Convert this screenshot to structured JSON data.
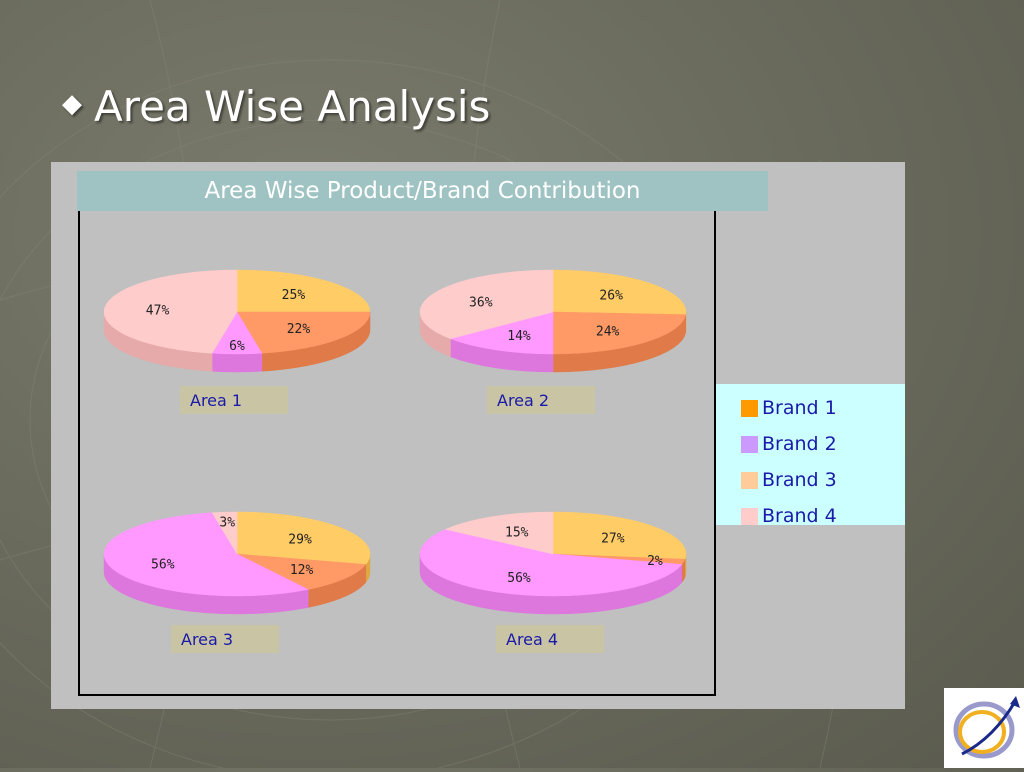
{
  "slide": {
    "title": "Area Wise Analysis",
    "bullet": "◆"
  },
  "chart_data": {
    "type": "pie",
    "title": "Area Wise Product/Brand Contribution",
    "legend_position": "right",
    "legend": [
      {
        "name": "Brand 1",
        "color": "#ff9900"
      },
      {
        "name": "Brand 2",
        "color": "#cc99ff"
      },
      {
        "name": "Brand 3",
        "color": "#ffcc99"
      },
      {
        "name": "Brand 4",
        "color": "#ffcccc"
      }
    ],
    "pies": [
      {
        "label": "Area 1",
        "slices": [
          {
            "value": 25,
            "label": "25%",
            "color": "#ffcc66",
            "side": "#e0a840"
          },
          {
            "value": 22,
            "label": "22%",
            "color": "#ff9966",
            "side": "#e07a48"
          },
          {
            "value": 6,
            "label": "6%",
            "color": "#ff99ff",
            "side": "#dd77dd"
          },
          {
            "value": 47,
            "label": "47%",
            "color": "#ffcccc",
            "side": "#e6aaaa"
          }
        ]
      },
      {
        "label": "Area 2",
        "slices": [
          {
            "value": 26,
            "label": "26%",
            "color": "#ffcc66",
            "side": "#e0a840"
          },
          {
            "value": 24,
            "label": "24%",
            "color": "#ff9966",
            "side": "#e07a48"
          },
          {
            "value": 14,
            "label": "14%",
            "color": "#ff99ff",
            "side": "#dd77dd"
          },
          {
            "value": 36,
            "label": "36%",
            "color": "#ffcccc",
            "side": "#e6aaaa"
          }
        ]
      },
      {
        "label": "Area 3",
        "slices": [
          {
            "value": 29,
            "label": "29%",
            "color": "#ffcc66",
            "side": "#e0a840"
          },
          {
            "value": 12,
            "label": "12%",
            "color": "#ff9966",
            "side": "#e07a48"
          },
          {
            "value": 56,
            "label": "56%",
            "color": "#ff99ff",
            "side": "#dd77dd"
          },
          {
            "value": 3,
            "label": "3%",
            "color": "#ffcccc",
            "side": "#e6aaaa"
          }
        ]
      },
      {
        "label": "Area 4",
        "slices": [
          {
            "value": 27,
            "label": "27%",
            "color": "#ffcc66",
            "side": "#e0a840"
          },
          {
            "value": 2,
            "label": "2%",
            "color": "#ff9966",
            "side": "#e07a48"
          },
          {
            "value": 56,
            "label": "56%",
            "color": "#ff99ff",
            "side": "#dd77dd"
          },
          {
            "value": 15,
            "label": "15%",
            "color": "#ffcccc",
            "side": "#e6aaaa"
          }
        ]
      }
    ]
  },
  "logo": {
    "icon": "globe-arrow-logo-icon"
  }
}
